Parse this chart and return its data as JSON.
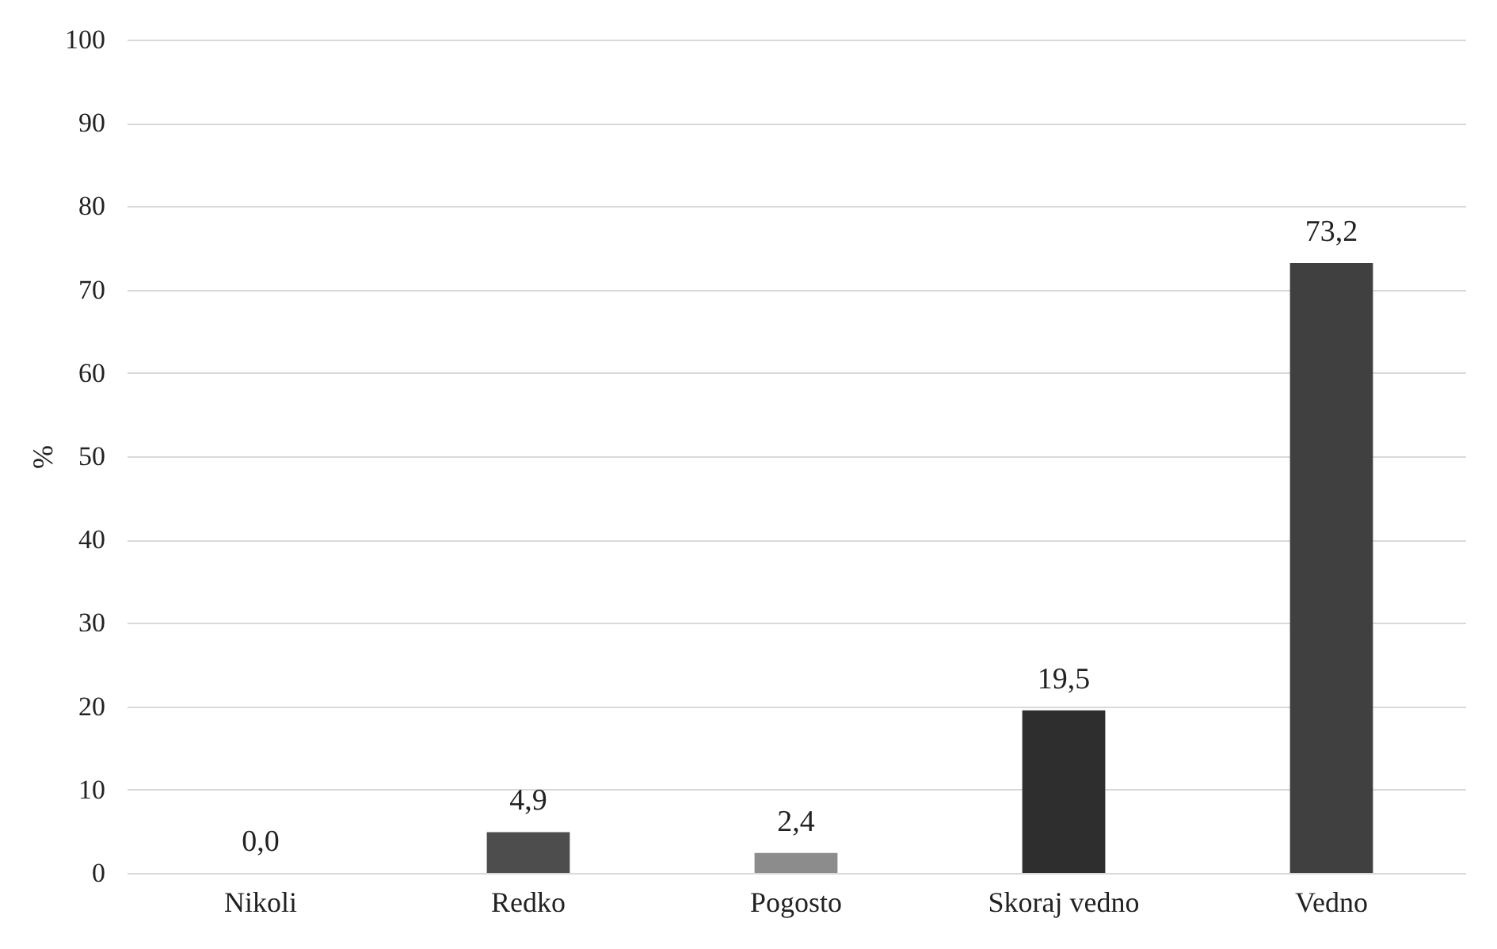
{
  "chart_data": {
    "type": "bar",
    "ylabel": "%",
    "categories": [
      "Nikoli",
      "Redko",
      "Pogosto",
      "Skoraj vedno",
      "Vedno"
    ],
    "values": [
      0.0,
      4.9,
      2.4,
      19.5,
      73.2
    ],
    "colors": [
      "#1a1a1a",
      "#4d4d4d",
      "#8c8c8c",
      "#2e2e2e",
      "#404040"
    ],
    "value_labels": [
      "0,0",
      "4,9",
      "2,4",
      "19,5",
      "73,2"
    ],
    "ylim": [
      0,
      100
    ],
    "yticks": [
      0,
      10,
      20,
      30,
      40,
      50,
      60,
      70,
      80,
      90,
      100
    ],
    "grid": "y"
  }
}
